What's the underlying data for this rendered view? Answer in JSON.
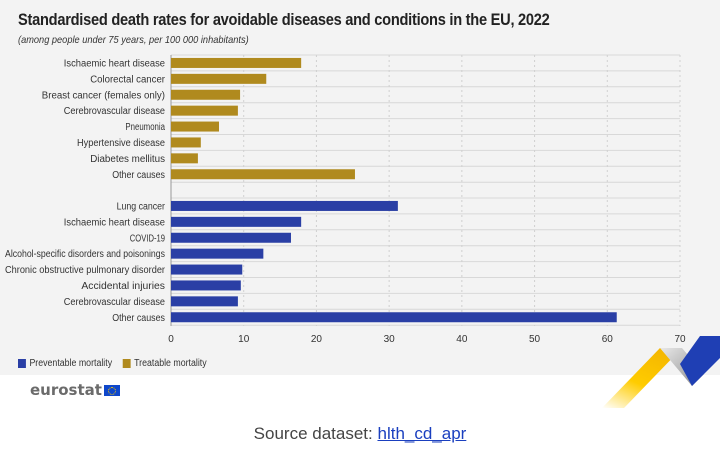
{
  "chart_data": {
    "type": "bar",
    "orientation": "horizontal",
    "title": "Standardised death rates for avoidable diseases and conditions in the EU, 2022",
    "subtitle": "(among people under 75 years, per 100 000 inhabitants)",
    "xlabel": "",
    "ylabel": "",
    "xlim": [
      0,
      70
    ],
    "xticks": [
      0,
      10,
      20,
      30,
      40,
      50,
      60,
      70
    ],
    "grid": true,
    "legend_position": "bottom-left",
    "series": [
      {
        "name": "Treatable mortality",
        "color": "#b08a1e",
        "categories": [
          "Ischaemic heart disease",
          "Colorectal cancer",
          "Breast cancer (females only)",
          "Cerebrovascular disease",
          "Pneumonia",
          "Hypertensive disease",
          "Diabetes mellitus",
          "Other causes"
        ],
        "values": [
          17.9,
          13.1,
          9.5,
          9.2,
          6.6,
          4.1,
          3.7,
          25.3
        ]
      },
      {
        "name": "Preventable mortality",
        "color": "#2a3fa5",
        "categories": [
          "Lung cancer",
          "Ischaemic heart disease",
          "COVID-19",
          "Alcohol-specific disorders and poisonings",
          "Chronic obstructive pulmonary disorder",
          "Accidental injuries",
          "Cerebrovascular disease",
          "Other causes"
        ],
        "values": [
          31.2,
          17.9,
          16.5,
          12.7,
          9.8,
          9.6,
          9.2,
          61.3
        ]
      }
    ],
    "legend": [
      {
        "label": "Preventable mortality",
        "color": "#2a3fa5"
      },
      {
        "label": "Treatable mortality",
        "color": "#b08a1e"
      }
    ]
  },
  "branding": {
    "logo_text": "eurostat"
  },
  "footer": {
    "source_label": "Source dataset:",
    "source_link": "hlth_cd_apr"
  }
}
